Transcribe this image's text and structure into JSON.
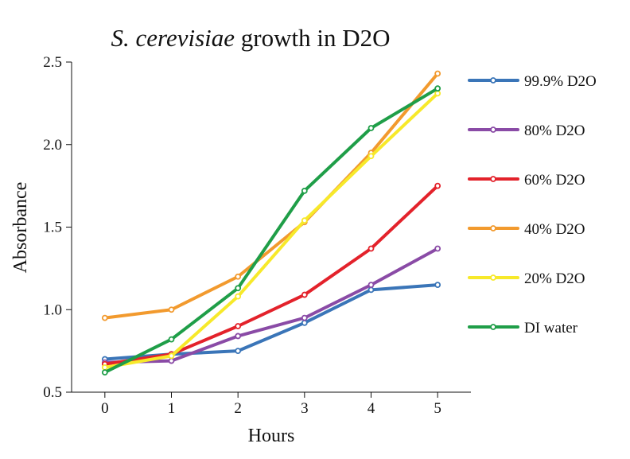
{
  "chart_data": {
    "type": "line",
    "title": {
      "italic": "S. cerevisiae",
      "rest": " growth in D2O"
    },
    "xlabel": "Hours",
    "ylabel": "Absorbance",
    "x": [
      0,
      1,
      2,
      3,
      4,
      5
    ],
    "x_ticks": [
      "0",
      "1",
      "2",
      "3",
      "4",
      "5"
    ],
    "y_ticks": [
      "0.5",
      "1.0",
      "1.5",
      "2.0",
      "2.5"
    ],
    "y_tick_values": [
      0.5,
      1.0,
      1.5,
      2.0,
      2.5
    ],
    "xlim": [
      -0.5,
      5.5
    ],
    "ylim": [
      0.5,
      2.5
    ],
    "grid": false,
    "legend_position": "right",
    "series": [
      {
        "name": "99.9% D2O",
        "color": "#3a75b8",
        "values": [
          0.7,
          0.73,
          0.75,
          0.92,
          1.12,
          1.15
        ]
      },
      {
        "name": "80% D2O",
        "color": "#8a4ba6",
        "values": [
          0.68,
          0.69,
          0.84,
          0.95,
          1.15,
          1.37
        ]
      },
      {
        "name": "60% D2O",
        "color": "#e3222b",
        "values": [
          0.67,
          0.73,
          0.9,
          1.09,
          1.37,
          1.75
        ]
      },
      {
        "name": "40% D2O",
        "color": "#f29a2e",
        "values": [
          0.95,
          1.0,
          1.2,
          1.53,
          1.95,
          2.43
        ]
      },
      {
        "name": "20% D2O",
        "color": "#f7e92a",
        "values": [
          0.65,
          0.72,
          1.08,
          1.54,
          1.93,
          2.31
        ]
      },
      {
        "name": "DI water",
        "color": "#1f9e48",
        "values": [
          0.62,
          0.82,
          1.13,
          1.72,
          2.1,
          2.34
        ]
      }
    ]
  }
}
